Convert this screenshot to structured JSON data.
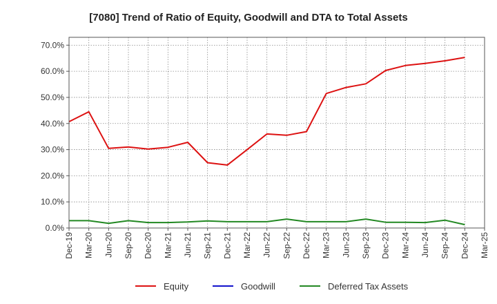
{
  "chart_data": {
    "type": "line",
    "title": "[7080]  Trend of Ratio of Equity, Goodwill and DTA to Total Assets",
    "xlabel": "",
    "ylabel": "",
    "ylim": [
      0,
      73
    ],
    "y_ticks": [
      "0.0%",
      "10.0%",
      "20.0%",
      "30.0%",
      "40.0%",
      "50.0%",
      "60.0%",
      "70.0%"
    ],
    "y_tick_values": [
      0,
      10,
      20,
      30,
      40,
      50,
      60,
      70
    ],
    "x_ticks": [
      "Dec-19",
      "Mar-20",
      "Jun-20",
      "Sep-20",
      "Dec-20",
      "Mar-21",
      "Jun-21",
      "Sep-21",
      "Dec-21",
      "Mar-22",
      "Jun-22",
      "Sep-22",
      "Dec-22",
      "Mar-23",
      "Jun-23",
      "Sep-23",
      "Dec-23",
      "Mar-24",
      "Jun-24",
      "Sep-24",
      "Dec-24",
      "Mar-25"
    ],
    "grid": true,
    "legend_position": "bottom",
    "series": [
      {
        "name": "Equity",
        "color": "#dd1111",
        "values": [
          40.7,
          44.5,
          30.5,
          31.0,
          30.2,
          30.9,
          32.8,
          25.0,
          24.1,
          30.0,
          36.0,
          35.5,
          36.9,
          51.5,
          53.8,
          55.2,
          60.3,
          62.2,
          63.0,
          64.0,
          65.3
        ]
      },
      {
        "name": "Goodwill",
        "color": "#1111cc",
        "values": []
      },
      {
        "name": "Deferred Tax Assets",
        "color": "#228822",
        "values": [
          2.8,
          2.8,
          1.8,
          2.8,
          2.1,
          2.1,
          2.3,
          2.7,
          2.4,
          2.4,
          2.4,
          3.4,
          2.4,
          2.4,
          2.4,
          3.4,
          2.2,
          2.2,
          2.1,
          3.0,
          1.3
        ]
      }
    ]
  }
}
